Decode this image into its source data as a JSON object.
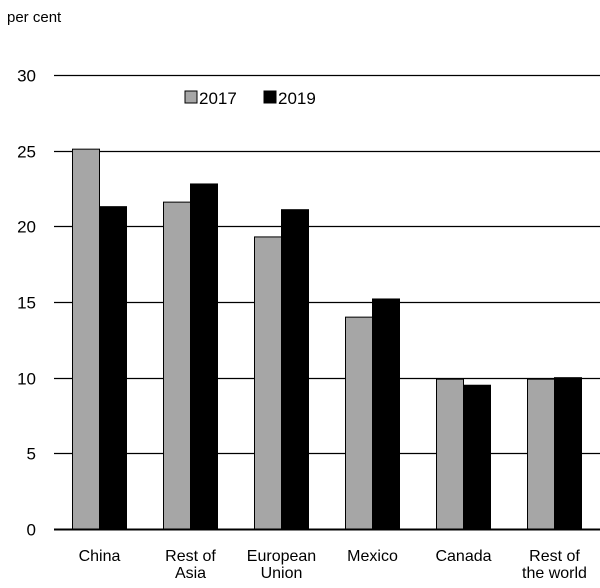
{
  "chart_data": {
    "type": "bar",
    "unit_label": "per cent",
    "categories": [
      [
        "China"
      ],
      [
        "Rest of",
        "Asia"
      ],
      [
        "European",
        "Union"
      ],
      [
        "Mexico"
      ],
      [
        "Canada"
      ],
      [
        "Rest of",
        "the world"
      ]
    ],
    "series": [
      {
        "name": "2017",
        "color": "#a6a6a6",
        "values": [
          25.1,
          21.6,
          19.3,
          14.0,
          9.9,
          9.9
        ]
      },
      {
        "name": "2019",
        "color": "#000000",
        "values": [
          21.3,
          22.8,
          21.1,
          15.2,
          9.5,
          10.0
        ]
      }
    ],
    "ylim": [
      0,
      30
    ],
    "yticks": [
      0,
      5,
      10,
      15,
      20,
      25,
      30
    ],
    "grid": true,
    "legend_position": "top-center"
  }
}
